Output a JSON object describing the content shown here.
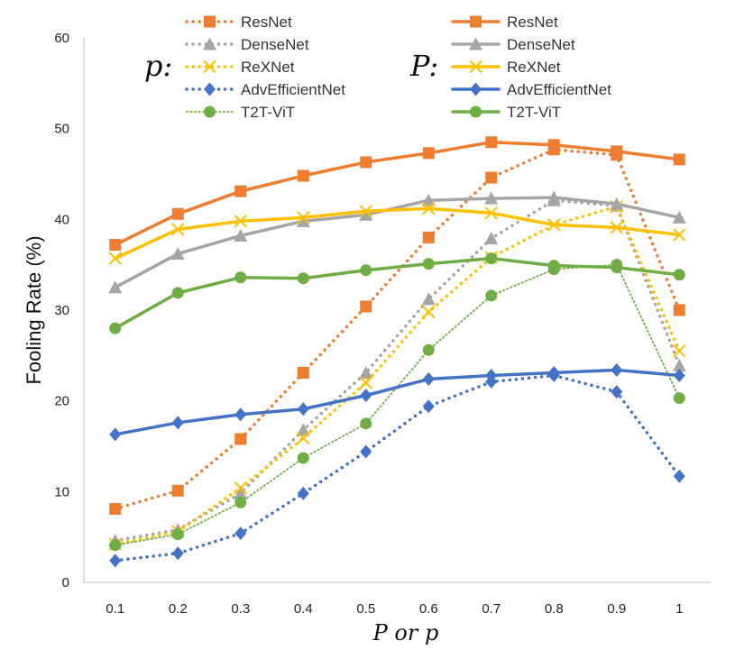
{
  "chart_data": {
    "type": "line",
    "xlabel": "P or p",
    "ylabel": "Fooling Rate (%)",
    "ylim": [
      0,
      60
    ],
    "yticks": [
      "0",
      "10",
      "20",
      "30",
      "40",
      "50",
      "60"
    ],
    "categories": [
      "0.1",
      "0.2",
      "0.3",
      "0.4",
      "0.5",
      "0.6",
      "0.7",
      "0.8",
      "0.9",
      "1"
    ],
    "grid": false,
    "legend_groups": [
      {
        "title": "p:",
        "style": "dotted"
      },
      {
        "title": "P:",
        "style": "solid"
      }
    ],
    "series": [
      {
        "name": "ResNet",
        "group": "p",
        "style": "dotted",
        "color": "#ED7D31",
        "marker": "square",
        "values": [
          8.1,
          10.1,
          15.8,
          23.1,
          30.4,
          38.0,
          44.6,
          47.7,
          47.1,
          30.0
        ]
      },
      {
        "name": "DenseNet",
        "group": "p",
        "style": "dotted",
        "color": "#A5A5A5",
        "marker": "triangle",
        "values": [
          4.6,
          5.8,
          9.8,
          16.8,
          23.1,
          31.2,
          37.9,
          42.1,
          41.5,
          23.9
        ]
      },
      {
        "name": "ReXNet",
        "group": "p",
        "style": "dotted",
        "color": "#FFC000",
        "marker": "x",
        "values": [
          4.2,
          5.6,
          10.4,
          15.9,
          22.0,
          29.8,
          35.8,
          39.4,
          41.4,
          25.5
        ]
      },
      {
        "name": "AdvEfficientNet",
        "group": "p",
        "style": "dotted",
        "color": "#4472C4",
        "marker": "diamond",
        "values": [
          2.4,
          3.2,
          5.4,
          9.8,
          14.4,
          19.4,
          22.1,
          22.8,
          21.0,
          11.7
        ]
      },
      {
        "name": "T2T-ViT",
        "group": "p",
        "style": "dotted",
        "color": "#70AD47",
        "marker": "circle",
        "values": [
          4.1,
          5.3,
          8.8,
          13.7,
          17.5,
          25.6,
          31.6,
          34.5,
          35.0,
          20.3
        ]
      },
      {
        "name": "ResNet",
        "group": "P",
        "style": "solid",
        "color": "#ED7D31",
        "marker": "square",
        "values": [
          37.2,
          40.6,
          43.1,
          44.8,
          46.3,
          47.3,
          48.5,
          48.2,
          47.5,
          46.6
        ]
      },
      {
        "name": "DenseNet",
        "group": "P",
        "style": "solid",
        "color": "#A5A5A5",
        "marker": "triangle",
        "values": [
          32.5,
          36.2,
          38.2,
          39.8,
          40.5,
          42.1,
          42.3,
          42.4,
          41.7,
          40.2
        ]
      },
      {
        "name": "ReXNet",
        "group": "P",
        "style": "solid",
        "color": "#FFC000",
        "marker": "x",
        "values": [
          35.7,
          38.9,
          39.8,
          40.2,
          40.9,
          41.2,
          40.7,
          39.4,
          39.1,
          38.3
        ]
      },
      {
        "name": "AdvEfficientNet",
        "group": "P",
        "style": "solid",
        "color": "#4472C4",
        "marker": "diamond",
        "values": [
          16.3,
          17.6,
          18.5,
          19.1,
          20.6,
          22.4,
          22.8,
          23.1,
          23.4,
          22.8
        ]
      },
      {
        "name": "T2T-ViT",
        "group": "P",
        "style": "solid",
        "color": "#70AD47",
        "marker": "circle",
        "values": [
          28.0,
          31.9,
          33.6,
          33.5,
          34.4,
          35.1,
          35.7,
          34.9,
          34.7,
          33.9
        ]
      }
    ]
  }
}
